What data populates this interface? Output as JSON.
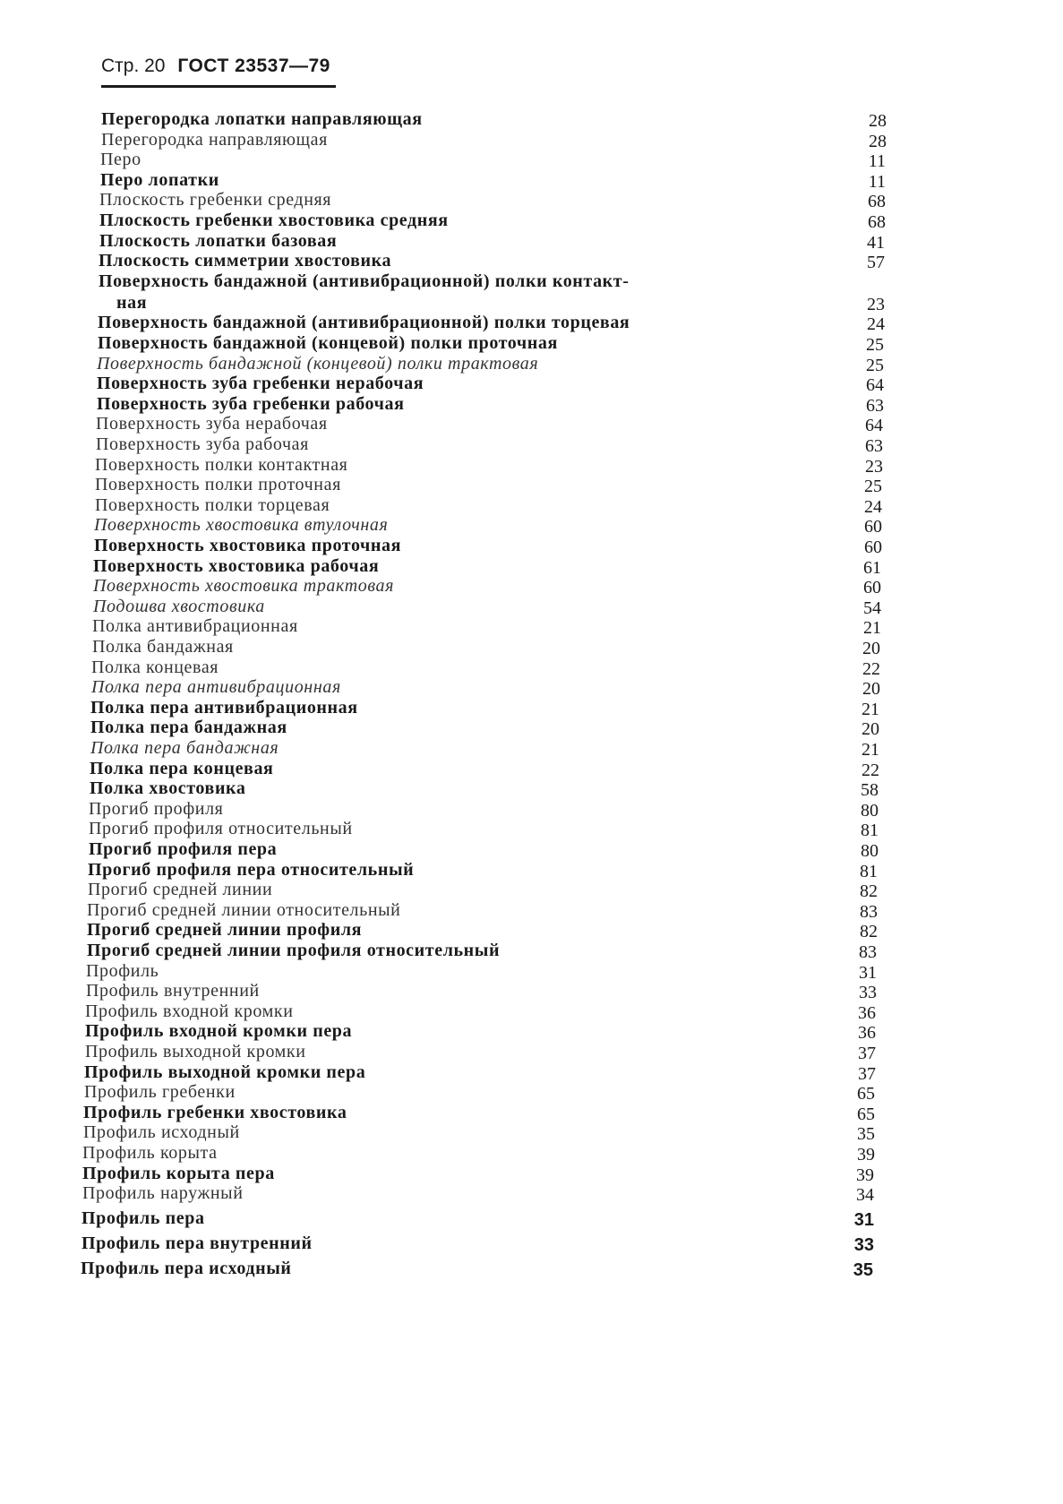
{
  "header": {
    "page": "Стр. 20",
    "standard": "ГОСТ 23537—79"
  },
  "entries": [
    {
      "term": "Перегородка лопатки направляющая",
      "style": "bold",
      "page": "28"
    },
    {
      "term": "Перегородка направляющая",
      "style": "regular",
      "page": "28"
    },
    {
      "term": "Перо",
      "style": "regular",
      "page": "11"
    },
    {
      "term": "Перо лопатки",
      "style": "bold",
      "page": "11"
    },
    {
      "term": "Плоскость гребенки средняя",
      "style": "regular",
      "page": "68"
    },
    {
      "term": "Плоскость гребенки хвостовика средняя",
      "style": "bold",
      "page": "68"
    },
    {
      "term": "Плоскость лопатки базовая",
      "style": "bold",
      "page": "41"
    },
    {
      "term": "Плоскость симметрии хвостовика",
      "style": "bold",
      "page": "57"
    },
    {
      "term": "Поверхность бандажной (антивибрационной) полки контакт-",
      "term_cont": "ная",
      "style": "bold",
      "page": "23"
    },
    {
      "term": "Поверхность бандажной (антивибрационной) полки торцевая",
      "style": "bold",
      "page": "24"
    },
    {
      "term": "Поверхность бандажной (концевой) полки проточная",
      "style": "bold",
      "page": "25"
    },
    {
      "term": "Поверхность бандажной (концевой) полки трактовая",
      "style": "italic",
      "page": "25"
    },
    {
      "term": "Поверхность зуба гребенки нерабочая",
      "style": "bold",
      "page": "64"
    },
    {
      "term": "Поверхность зуба гребенки рабочая",
      "style": "bold",
      "page": "63"
    },
    {
      "term": "Поверхность зуба нерабочая",
      "style": "regular",
      "page": "64"
    },
    {
      "term": "Поверхность зуба рабочая",
      "style": "regular",
      "page": "63"
    },
    {
      "term": "Поверхность полки контактная",
      "style": "regular",
      "page": "23"
    },
    {
      "term": "Поверхность полки проточная",
      "style": "regular",
      "page": "25"
    },
    {
      "term": "Поверхность полки торцевая",
      "style": "regular",
      "page": "24"
    },
    {
      "term": "Поверхность хвостовика втулочная",
      "style": "italic",
      "page": "60"
    },
    {
      "term": "Поверхность хвостовика проточная",
      "style": "bold",
      "page": "60"
    },
    {
      "term": "Поверхность хвостовика  рабочая",
      "style": "bold",
      "page": "61"
    },
    {
      "term": "Поверхность хвостовика трактовая",
      "style": "italic",
      "page": "60"
    },
    {
      "term": "Подошва хвостовика",
      "style": "italic",
      "page": "54"
    },
    {
      "term": "Полка антивибрационная",
      "style": "regular",
      "page": "21"
    },
    {
      "term": "Полка бандажная",
      "style": "regular",
      "page": "20"
    },
    {
      "term": "Полка концевая",
      "style": "regular",
      "page": "22"
    },
    {
      "term": "Полка пера антивибрационная",
      "style": "italic",
      "page": "20"
    },
    {
      "term": "Полка пера антивибрационная",
      "style": "bold",
      "page": "21"
    },
    {
      "term": "Полка пера бандажная",
      "style": "bold",
      "page": "20"
    },
    {
      "term": "Полка пера бандажная",
      "style": "italic",
      "page": "21"
    },
    {
      "term": "Полка пера концевая",
      "style": "bold",
      "page": "22"
    },
    {
      "term": "Полка хвостовика",
      "style": "bold",
      "page": "58"
    },
    {
      "term": "Прогиб профиля",
      "style": "regular",
      "page": "80"
    },
    {
      "term": "Прогиб профиля относительный",
      "style": "regular",
      "page": "81"
    },
    {
      "term": "Прогиб профиля пера",
      "style": "bold",
      "page": "80"
    },
    {
      "term": "Прогиб профиля пера относительный",
      "style": "bold",
      "page": "81"
    },
    {
      "term": "Прогиб средней линии",
      "style": "regular",
      "page": "82"
    },
    {
      "term": "Прогиб средней линии относительный",
      "style": "regular",
      "page": "83"
    },
    {
      "term": "Прогиб средней линии профиля",
      "style": "bold",
      "page": "82"
    },
    {
      "term": "Прогиб средней линии профиля относительный",
      "style": "bold",
      "page": "83"
    },
    {
      "term": "Профиль",
      "style": "regular",
      "page": "31"
    },
    {
      "term": "Профиль внутренний",
      "style": "regular",
      "page": "33"
    },
    {
      "term": "Профиль входной кромки",
      "style": "regular",
      "page": "36"
    },
    {
      "term": "Профиль входной кромки пера",
      "style": "bold",
      "page": "36"
    },
    {
      "term": "Профиль выходной кромки",
      "style": "regular",
      "page": "37"
    },
    {
      "term": "Профиль выходной кромки пера",
      "style": "bold",
      "page": "37"
    },
    {
      "term": "Профиль гребенки",
      "style": "regular",
      "page": "65"
    },
    {
      "term": "Профиль гребенки хвостовика",
      "style": "bold",
      "page": "65"
    },
    {
      "term": "Профиль исходный",
      "style": "regular",
      "page": "35"
    },
    {
      "term": "Профиль корыта",
      "style": "regular",
      "page": "39"
    },
    {
      "term": "Профиль корыта пера",
      "style": "bold",
      "page": "39"
    },
    {
      "term": "Профиль наружный",
      "style": "regular",
      "page": "34"
    },
    {
      "term": "Профиль пера",
      "style": "bold",
      "page": "31"
    },
    {
      "term": "Профиль пера внутренний",
      "style": "bold",
      "page": "33"
    },
    {
      "term": "Профиль пера исходный",
      "style": "bold",
      "page": "35"
    }
  ]
}
